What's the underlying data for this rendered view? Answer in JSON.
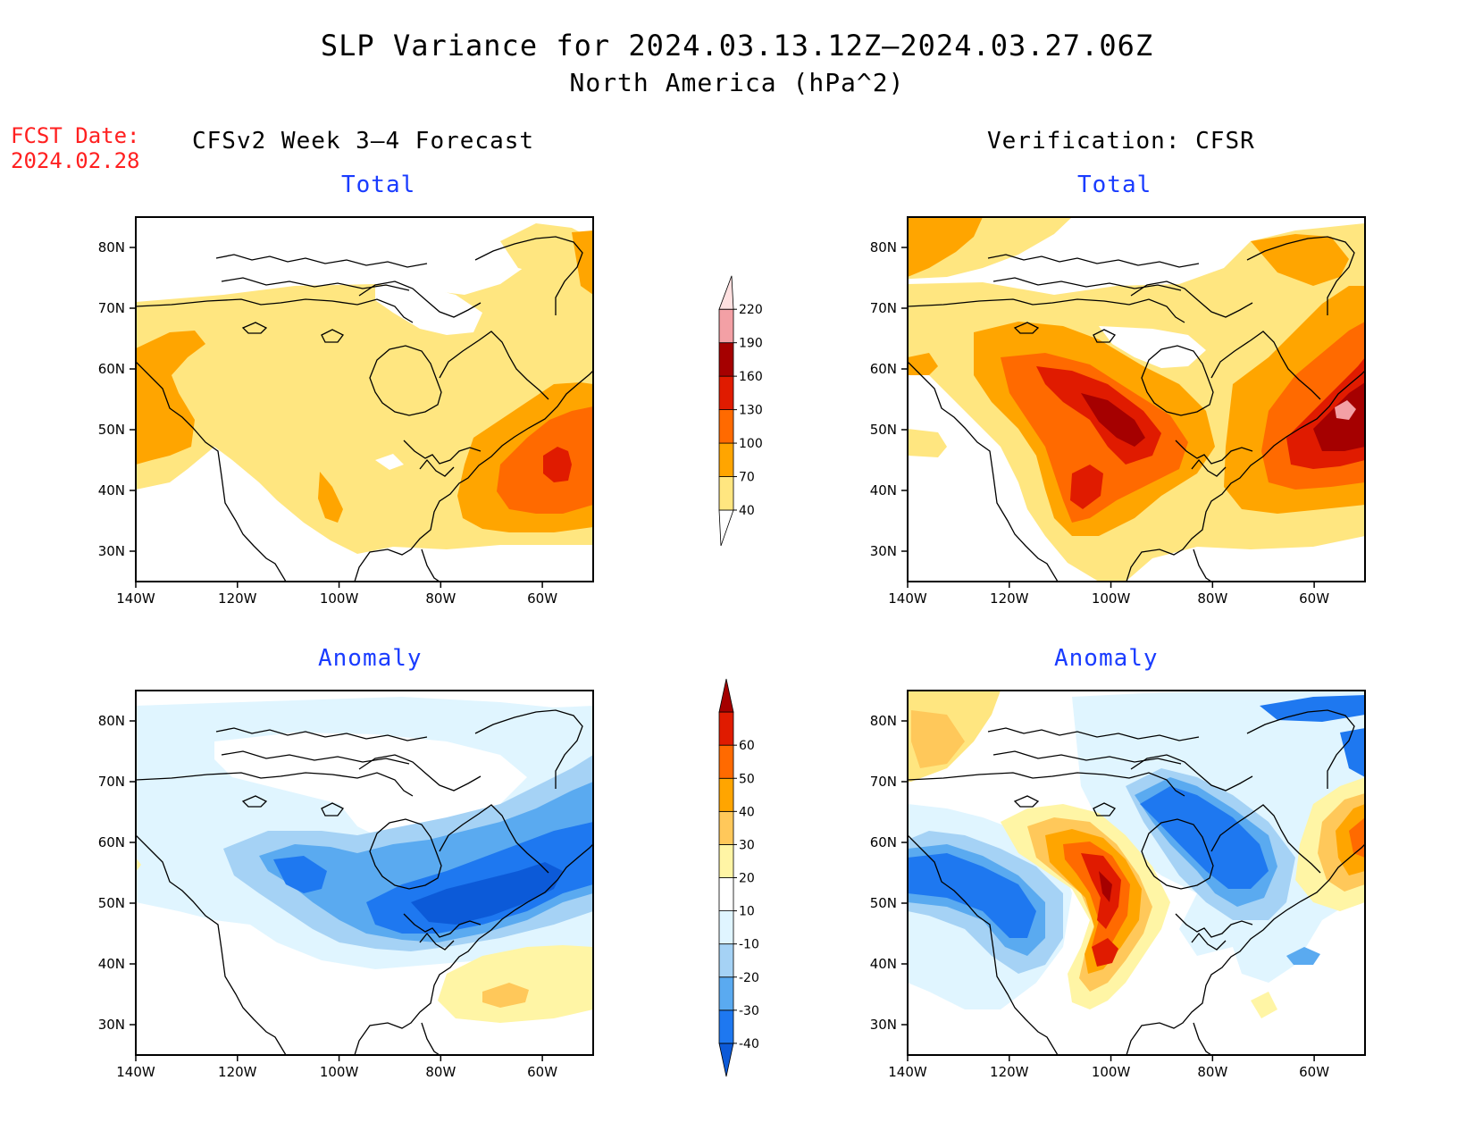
{
  "header": {
    "title_line1": "SLP Variance for 2024.03.13.12Z–2024.03.27.06Z",
    "title_line2": "North America (hPa^2)"
  },
  "fcst_date": {
    "label": "FCST Date:",
    "value": "2024.02.28"
  },
  "columns": {
    "left_title": "CFSv2 Week 3–4 Forecast",
    "right_title": "Verification: CFSR"
  },
  "panels": {
    "forecast_total": {
      "title": "Total"
    },
    "verification_total": {
      "title": "Total"
    },
    "forecast_anomaly": {
      "title": "Anomaly"
    },
    "verification_anomaly": {
      "title": "Anomaly"
    }
  },
  "axes": {
    "lat_labels": [
      "80N",
      "70N",
      "60N",
      "50N",
      "40N",
      "30N"
    ],
    "lon_labels": [
      "140W",
      "120W",
      "100W",
      "80W",
      "60W"
    ]
  },
  "colorbars": {
    "total": {
      "levels": [
        "40",
        "70",
        "100",
        "130",
        "160",
        "190",
        "220"
      ],
      "colors": [
        "#ffe680",
        "#ffa500",
        "#ff6a00",
        "#e01b00",
        "#a50000",
        "#f3a0a5",
        "#ffe0e0"
      ]
    },
    "anomaly": {
      "levels": [
        "-40",
        "-30",
        "-20",
        "-10",
        "10",
        "20",
        "30",
        "40",
        "50",
        "60"
      ],
      "colors": [
        "#0c5ad8",
        "#1e78f0",
        "#5aaaf0",
        "#a5d2f5",
        "#e0f5ff",
        "#ffffff",
        "#fff5a5",
        "#ffc85a",
        "#ffa500",
        "#ff6a00",
        "#e01b00",
        "#a50000"
      ]
    }
  },
  "palette": {
    "total_fill": [
      "#ffe680",
      "#ffa500",
      "#ff6a00",
      "#e01b00",
      "#a50000",
      "#f3a0a5"
    ],
    "anomaly_neg": [
      "#e0f5ff",
      "#a5d2f5",
      "#5aaaf0",
      "#1e78f0",
      "#0c5ad8"
    ],
    "anomaly_pos": [
      "#fff5a5",
      "#ffc85a",
      "#ffa500",
      "#ff6a00",
      "#e01b00",
      "#a50000"
    ]
  }
}
